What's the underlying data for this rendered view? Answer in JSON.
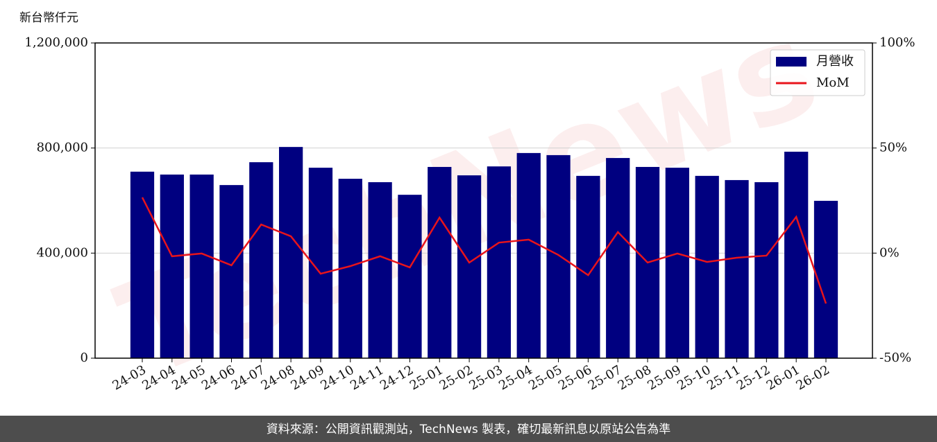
{
  "chart_data": {
    "type": "bar-line",
    "y_label": "新台幣仟元",
    "footer": "資料來源：公開資訊觀測站，TechNews 製表，確切最新訊息以原站公告為準",
    "watermark": "TechNews",
    "categories": [
      "24-03",
      "24-04",
      "24-05",
      "24-06",
      "24-07",
      "24-08",
      "24-09",
      "24-10",
      "24-11",
      "24-12",
      "25-01",
      "25-02",
      "25-03",
      "25-04",
      "25-05",
      "25-06",
      "25-07",
      "25-08",
      "25-09",
      "25-10",
      "25-11",
      "25-12",
      "26-01",
      "26-02"
    ],
    "series": [
      {
        "name": "月營收",
        "type": "bar",
        "color": "#000080",
        "values": [
          710000,
          699000,
          699000,
          659000,
          746000,
          804000,
          725000,
          683000,
          670000,
          622000,
          728000,
          696000,
          730000,
          781000,
          773000,
          694000,
          762000,
          728000,
          725000,
          694000,
          678000,
          670000,
          786000,
          599000
        ]
      },
      {
        "name": "MoM",
        "type": "line",
        "axis": "y2",
        "color": "#e8141b",
        "values": [
          26.5,
          -1.5,
          -0.2,
          -5.8,
          13.6,
          8.0,
          -9.8,
          -6.2,
          -1.5,
          -6.8,
          16.9,
          -4.5,
          5.0,
          6.4,
          -0.9,
          -10.5,
          10.0,
          -4.5,
          -0.2,
          -4.2,
          -2.2,
          -1.2,
          17.2,
          -24.0
        ]
      }
    ],
    "ylim": [
      0,
      1200000
    ],
    "yticks": [
      0,
      {
        "value": 400000,
        "label": "400,000"
      },
      {
        "value": 800000,
        "label": "800,000"
      },
      {
        "value": 1200000,
        "label": "1,200,000"
      }
    ],
    "y2lim": [
      -50,
      100
    ],
    "y2ticks": [
      {
        "value": -50,
        "label": "-50%"
      },
      {
        "value": 0,
        "label": "0%"
      },
      {
        "value": 50,
        "label": "50%"
      },
      {
        "value": 100,
        "label": "100%"
      }
    ],
    "grid": true,
    "legend": "upper right"
  }
}
